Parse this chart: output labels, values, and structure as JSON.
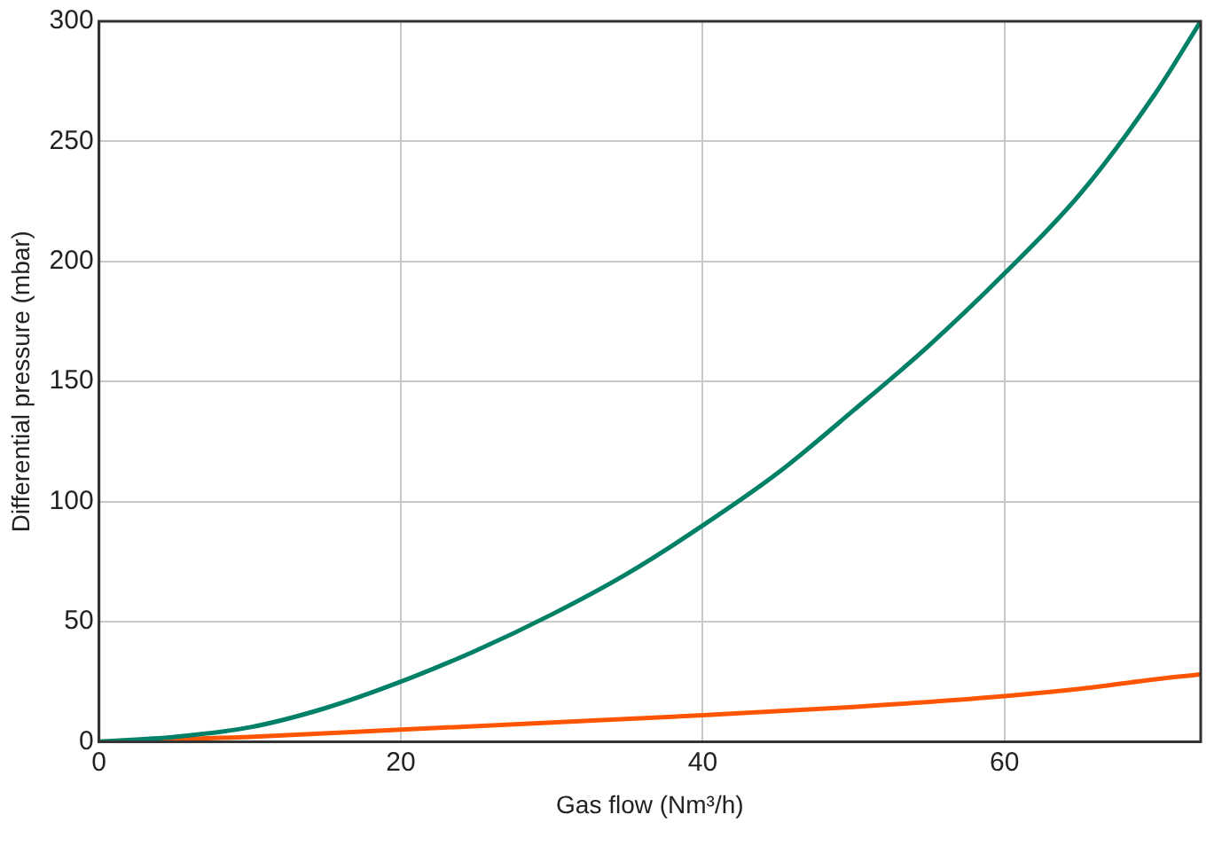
{
  "chart_data": {
    "type": "line",
    "xlabel": "Gas flow (Nm³/h)",
    "ylabel": "Differential pressure (mbar)",
    "xlim": [
      0,
      73
    ],
    "xticks": [
      0,
      20,
      40,
      60
    ],
    "ylim": [
      0,
      300
    ],
    "yticks": [
      0,
      50,
      100,
      150,
      200,
      250,
      300
    ],
    "grid": true,
    "marker": "none",
    "line_style": "solid",
    "series": [
      {
        "color": "#008066",
        "x": [
          0,
          5,
          10,
          15,
          20,
          25,
          30,
          35,
          40,
          45,
          50,
          55,
          60,
          65,
          70,
          73
        ],
        "values": [
          0,
          2,
          6,
          14,
          25,
          38,
          53,
          70,
          90,
          112,
          138,
          165,
          195,
          228,
          270,
          300
        ]
      },
      {
        "color": "#ff5500",
        "x": [
          0,
          10,
          20,
          30,
          40,
          50,
          60,
          65,
          70,
          73
        ],
        "values": [
          0,
          2,
          5,
          8,
          11,
          14.5,
          19,
          22,
          26,
          28
        ]
      }
    ]
  }
}
